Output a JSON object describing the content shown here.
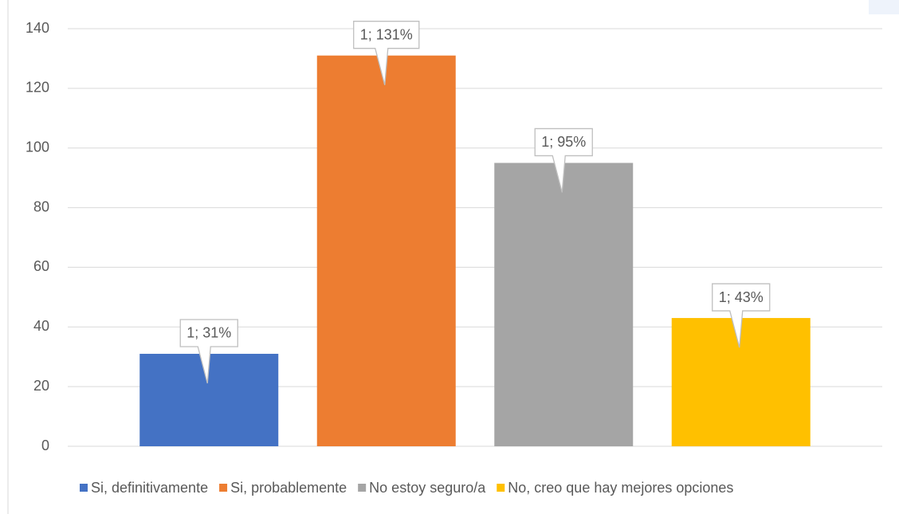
{
  "chart_data": {
    "type": "bar",
    "series": [
      {
        "name": "Si, definitivamente",
        "color": "#4472c4",
        "values": [
          31
        ],
        "value_labels": [
          "1; 31%"
        ]
      },
      {
        "name": "Si, probablemente",
        "color": "#ed7d31",
        "values": [
          131
        ],
        "value_labels": [
          "1; 131%"
        ]
      },
      {
        "name": "No estoy seguro/a",
        "color": "#a5a5a5",
        "values": [
          95
        ],
        "value_labels": [
          "1; 95%"
        ]
      },
      {
        "name": "No, creo que hay mejores opciones",
        "color": "#ffc000",
        "values": [
          43
        ],
        "value_labels": [
          "1; 43%"
        ]
      }
    ],
    "ylim": [
      0,
      140
    ],
    "yticks": [
      0,
      20,
      40,
      60,
      80,
      100,
      120,
      140
    ],
    "grid": true,
    "legend": "bottom"
  }
}
